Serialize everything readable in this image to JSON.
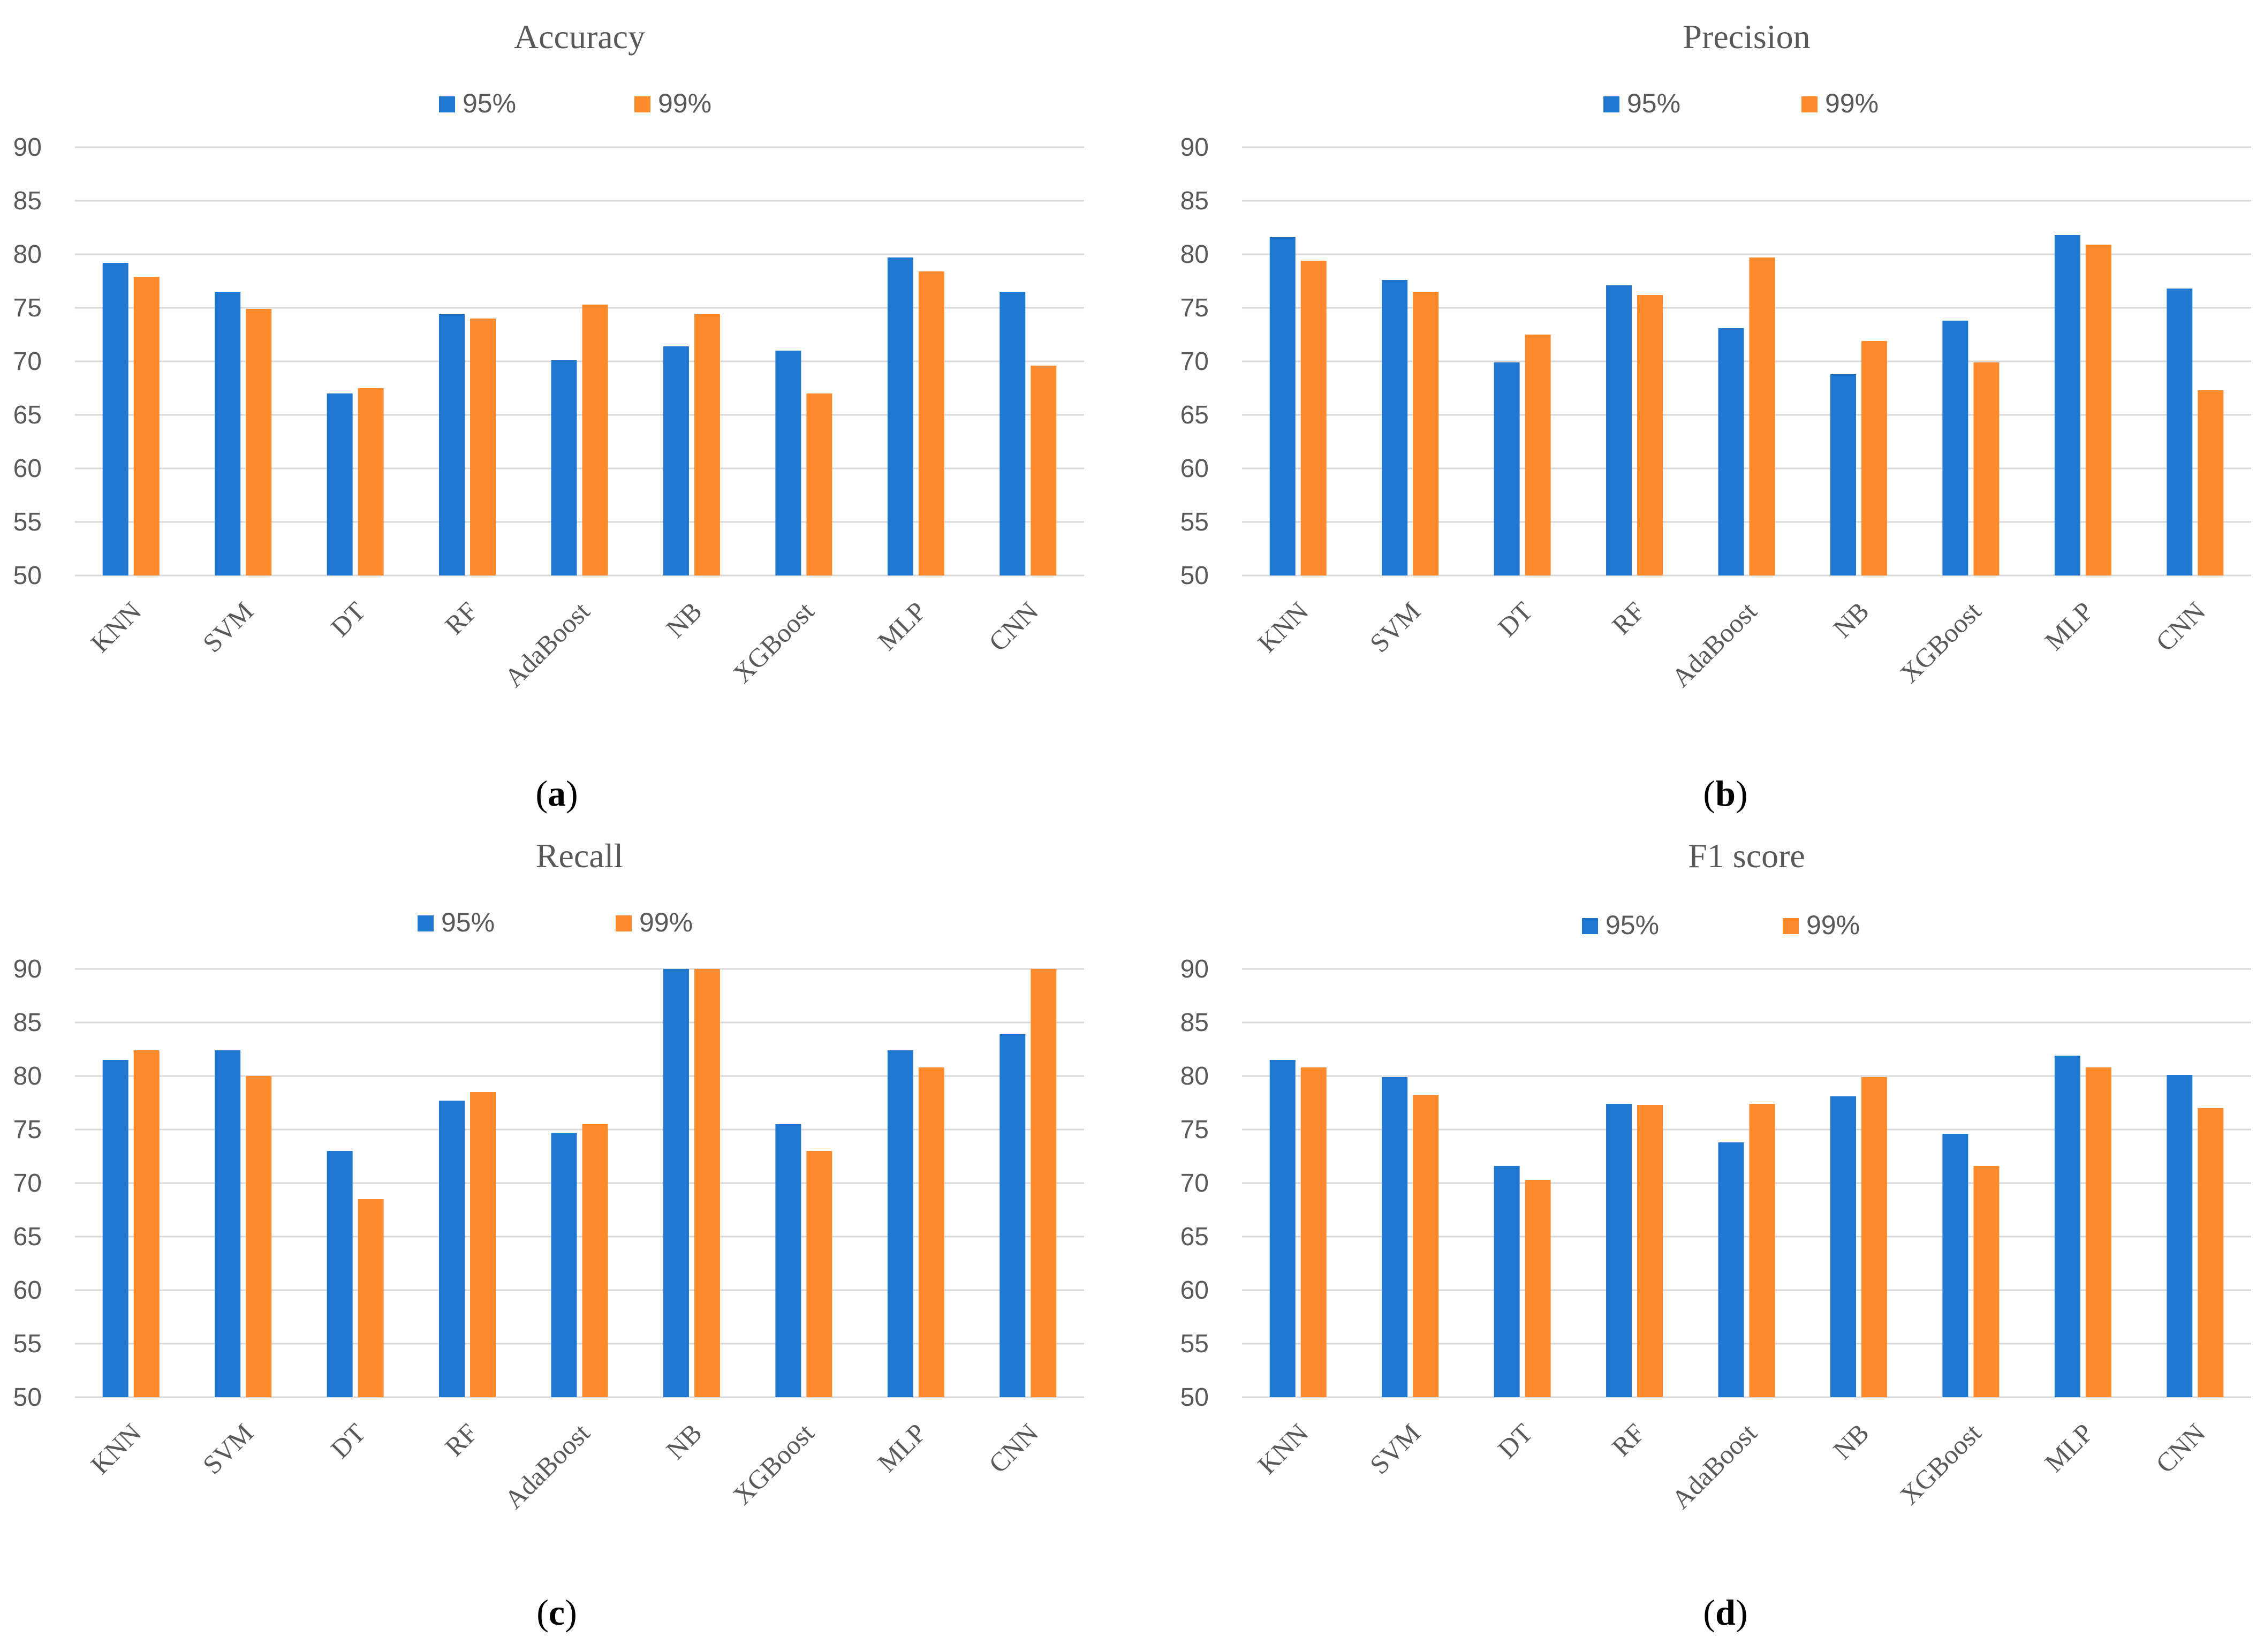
{
  "colors": {
    "series_95": "#1f77d0",
    "series_99": "#ff8a2b",
    "grid": "#d9d9d9",
    "text": "#595959"
  },
  "chart_data": [
    {
      "type": "bar",
      "title": "Accuracy",
      "caption_letter": "a",
      "categories": [
        "KNN",
        "SVM",
        "DT",
        "RF",
        "AdaBoost",
        "NB",
        "XGBoost",
        "MLP",
        "CNN"
      ],
      "series": [
        {
          "name": "95%",
          "values": [
            79.2,
            76.5,
            67.0,
            74.4,
            70.1,
            71.4,
            71.0,
            79.7,
            76.5
          ]
        },
        {
          "name": "99%",
          "values": [
            77.9,
            74.9,
            67.5,
            74.0,
            75.3,
            74.4,
            67.0,
            78.4,
            69.6
          ]
        }
      ],
      "ylim": [
        50,
        90
      ],
      "yticks": [
        "50",
        "55",
        "60",
        "65",
        "70",
        "75",
        "80",
        "85",
        "90"
      ],
      "grid": true,
      "legend": "top-center"
    },
    {
      "type": "bar",
      "title": "Precision",
      "caption_letter": "b",
      "categories": [
        "KNN",
        "SVM",
        "DT",
        "RF",
        "AdaBoost",
        "NB",
        "XGBoost",
        "MLP",
        "CNN"
      ],
      "series": [
        {
          "name": "95%",
          "values": [
            81.6,
            77.6,
            69.9,
            77.1,
            73.1,
            68.8,
            73.8,
            81.8,
            76.8
          ]
        },
        {
          "name": "99%",
          "values": [
            79.4,
            76.5,
            72.5,
            76.2,
            79.7,
            71.9,
            69.9,
            80.9,
            67.3
          ]
        }
      ],
      "ylim": [
        50,
        90
      ],
      "yticks": [
        "50",
        "55",
        "60",
        "65",
        "70",
        "75",
        "80",
        "85",
        "90"
      ],
      "grid": true,
      "legend": "top-center"
    },
    {
      "type": "bar",
      "title": "Recall",
      "caption_letter": "c",
      "categories": [
        "KNN",
        "SVM",
        "DT",
        "RF",
        "AdaBoost",
        "NB",
        "XGBoost",
        "MLP",
        "CNN"
      ],
      "series": [
        {
          "name": "95%",
          "values": [
            81.5,
            82.4,
            73.0,
            77.7,
            74.7,
            90.0,
            75.5,
            82.4,
            83.9
          ]
        },
        {
          "name": "99%",
          "values": [
            82.4,
            80.0,
            68.5,
            78.5,
            75.5,
            90.0,
            73.0,
            80.8,
            90.0
          ]
        }
      ],
      "ylim": [
        50,
        90
      ],
      "yticks": [
        "50",
        "55",
        "60",
        "65",
        "70",
        "75",
        "80",
        "85",
        "90"
      ],
      "grid": true,
      "legend": "top-center"
    },
    {
      "type": "bar",
      "title": "F1 score",
      "caption_letter": "d",
      "categories": [
        "KNN",
        "SVM",
        "DT",
        "RF",
        "AdaBoost",
        "NB",
        "XGBoost",
        "MLP",
        "CNN"
      ],
      "series": [
        {
          "name": "95%",
          "values": [
            81.5,
            79.9,
            71.6,
            77.4,
            73.8,
            78.1,
            74.6,
            81.9,
            80.1
          ]
        },
        {
          "name": "99%",
          "values": [
            80.8,
            78.2,
            70.3,
            77.3,
            77.4,
            79.9,
            71.6,
            80.8,
            77.0
          ]
        }
      ],
      "ylim": [
        50,
        90
      ],
      "yticks": [
        "50",
        "55",
        "60",
        "65",
        "70",
        "75",
        "80",
        "85",
        "90"
      ],
      "grid": true,
      "legend": "top-center"
    }
  ]
}
